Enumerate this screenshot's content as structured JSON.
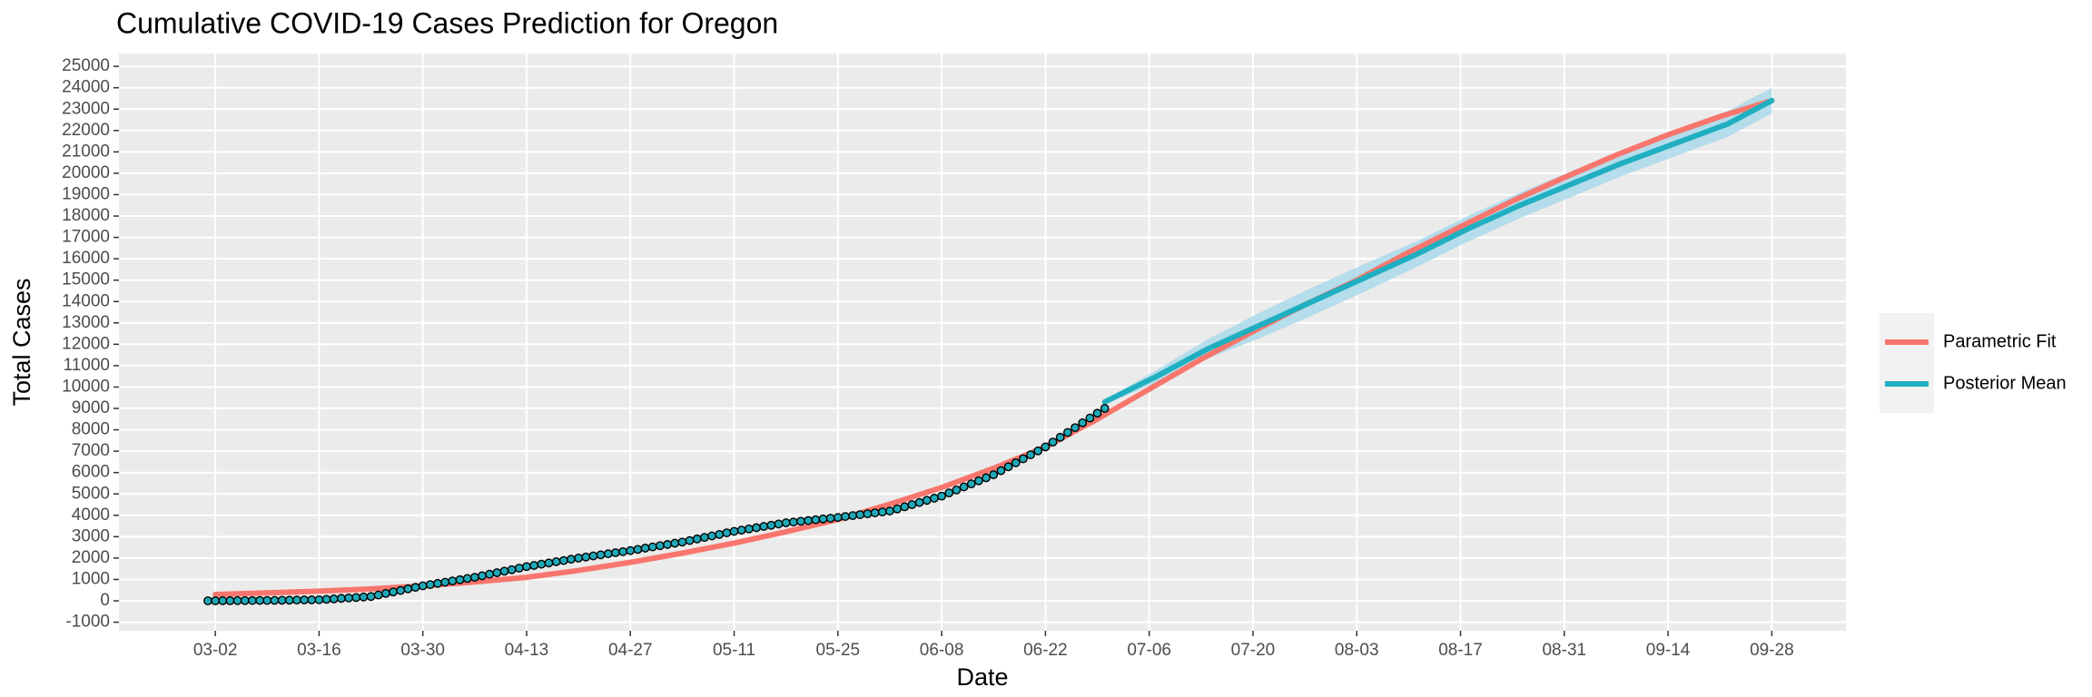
{
  "chart_data": {
    "type": "line",
    "title": "Cumulative COVID-19 Cases Prediction for Oregon",
    "x_label": "Date",
    "y_label": "Total Cases",
    "xlim": [
      "02-18",
      "10-08"
    ],
    "xticks": [
      "03-02",
      "03-16",
      "03-30",
      "04-13",
      "04-27",
      "05-11",
      "05-25",
      "06-08",
      "06-22",
      "07-06",
      "07-20",
      "08-03",
      "08-17",
      "08-31",
      "09-14",
      "09-28"
    ],
    "ylim": [
      -1400,
      25600
    ],
    "yticks": [
      -1000,
      0,
      1000,
      2000,
      3000,
      4000,
      5000,
      6000,
      7000,
      8000,
      9000,
      10000,
      11000,
      12000,
      13000,
      14000,
      15000,
      16000,
      17000,
      18000,
      19000,
      20000,
      21000,
      22000,
      23000,
      24000,
      25000
    ],
    "grid": true,
    "legend": "right",
    "points": {
      "color": "#1FA9B8",
      "x": [
        "03-01",
        "03-02",
        "03-03",
        "03-04",
        "03-05",
        "03-06",
        "03-07",
        "03-08",
        "03-09",
        "03-10",
        "03-11",
        "03-12",
        "03-13",
        "03-14",
        "03-15",
        "03-16",
        "03-17",
        "03-18",
        "03-19",
        "03-20",
        "03-21",
        "03-22",
        "03-23",
        "03-24",
        "03-25",
        "03-26",
        "03-27",
        "03-28",
        "03-29",
        "03-30",
        "03-31",
        "04-01",
        "04-02",
        "04-03",
        "04-04",
        "04-05",
        "04-06",
        "04-07",
        "04-08",
        "04-09",
        "04-10",
        "04-11",
        "04-12",
        "04-13",
        "04-14",
        "04-15",
        "04-16",
        "04-17",
        "04-18",
        "04-19",
        "04-20",
        "04-21",
        "04-22",
        "04-23",
        "04-24",
        "04-25",
        "04-26",
        "04-27",
        "04-28",
        "04-29",
        "04-30",
        "05-01",
        "05-02",
        "05-03",
        "05-04",
        "05-05",
        "05-06",
        "05-07",
        "05-08",
        "05-09",
        "05-10",
        "05-11",
        "05-12",
        "05-13",
        "05-14",
        "05-15",
        "05-16",
        "05-17",
        "05-18",
        "05-19",
        "05-20",
        "05-21",
        "05-22",
        "05-23",
        "05-24",
        "05-25",
        "05-26",
        "05-27",
        "05-28",
        "05-29",
        "05-30",
        "05-31",
        "06-01",
        "06-02",
        "06-03",
        "06-04",
        "06-05",
        "06-06",
        "06-07",
        "06-08",
        "06-09",
        "06-10",
        "06-11",
        "06-12",
        "06-13",
        "06-14",
        "06-15",
        "06-16",
        "06-17",
        "06-18",
        "06-19",
        "06-20",
        "06-21",
        "06-22",
        "06-23",
        "06-24",
        "06-25",
        "06-26",
        "06-27",
        "06-28",
        "06-29",
        "06-30"
      ],
      "values": [
        0,
        2,
        4,
        7,
        9,
        11,
        13,
        16,
        18,
        20,
        25,
        30,
        35,
        40,
        45,
        50,
        70,
        90,
        115,
        135,
        155,
        180,
        200,
        270,
        345,
        415,
        485,
        560,
        630,
        700,
        760,
        815,
        870,
        930,
        985,
        1045,
        1100,
        1170,
        1245,
        1315,
        1385,
        1455,
        1530,
        1600,
        1655,
        1715,
        1770,
        1830,
        1885,
        1945,
        2000,
        2050,
        2100,
        2150,
        2200,
        2250,
        2300,
        2350,
        2405,
        2465,
        2520,
        2580,
        2635,
        2695,
        2750,
        2820,
        2895,
        2965,
        3035,
        3105,
        3180,
        3250,
        3305,
        3365,
        3420,
        3480,
        3535,
        3595,
        3650,
        3685,
        3720,
        3755,
        3795,
        3830,
        3865,
        3900,
        3945,
        3985,
        4030,
        4070,
        4115,
        4155,
        4200,
        4300,
        4400,
        4500,
        4600,
        4700,
        4800,
        4900,
        5045,
        5185,
        5330,
        5470,
        5615,
        5755,
        5900,
        6085,
        6270,
        6455,
        6645,
        6830,
        7015,
        7200,
        7425,
        7650,
        7875,
        8100,
        8325,
        8550,
        8775,
        9000
      ]
    },
    "series": [
      {
        "name": "Parametric Fit",
        "color": "#F8766D",
        "x": [
          "03-02",
          "03-09",
          "03-16",
          "03-23",
          "03-30",
          "04-06",
          "04-13",
          "04-20",
          "04-27",
          "05-04",
          "05-11",
          "05-18",
          "05-25",
          "06-01",
          "06-08",
          "06-15",
          "06-22",
          "06-29",
          "07-06",
          "07-13",
          "07-20",
          "07-27",
          "08-03",
          "08-10",
          "08-17",
          "08-24",
          "08-31",
          "09-07",
          "09-14",
          "09-21",
          "09-28"
        ],
        "values": [
          300,
          370,
          450,
          560,
          700,
          880,
          1100,
          1420,
          1800,
          2230,
          2700,
          3230,
          3800,
          4520,
          5300,
          6200,
          7200,
          8500,
          9900,
          11300,
          12600,
          13850,
          15000,
          16300,
          17500,
          18700,
          19800,
          20850,
          21800,
          22650,
          23400
        ]
      },
      {
        "name": "Posterior Mean",
        "color": "#1FAFC0",
        "band_color": "#A6D8EA",
        "x": [
          "06-30",
          "07-07",
          "07-14",
          "07-21",
          "07-28",
          "08-04",
          "08-11",
          "08-18",
          "08-25",
          "09-01",
          "09-08",
          "09-15",
          "09-22",
          "09-28"
        ],
        "values": [
          9300,
          10500,
          11800,
          12900,
          14000,
          15100,
          16200,
          17400,
          18500,
          19500,
          20500,
          21400,
          22300,
          23400
        ],
        "lower": [
          9200,
          10200,
          11350,
          12300,
          13350,
          14450,
          15600,
          16800,
          17900,
          18900,
          19900,
          20800,
          21700,
          22800
        ],
        "upper": [
          9400,
          10800,
          12250,
          13500,
          14650,
          15750,
          16800,
          18000,
          19100,
          20100,
          21100,
          22000,
          22900,
          24000
        ]
      }
    ]
  }
}
